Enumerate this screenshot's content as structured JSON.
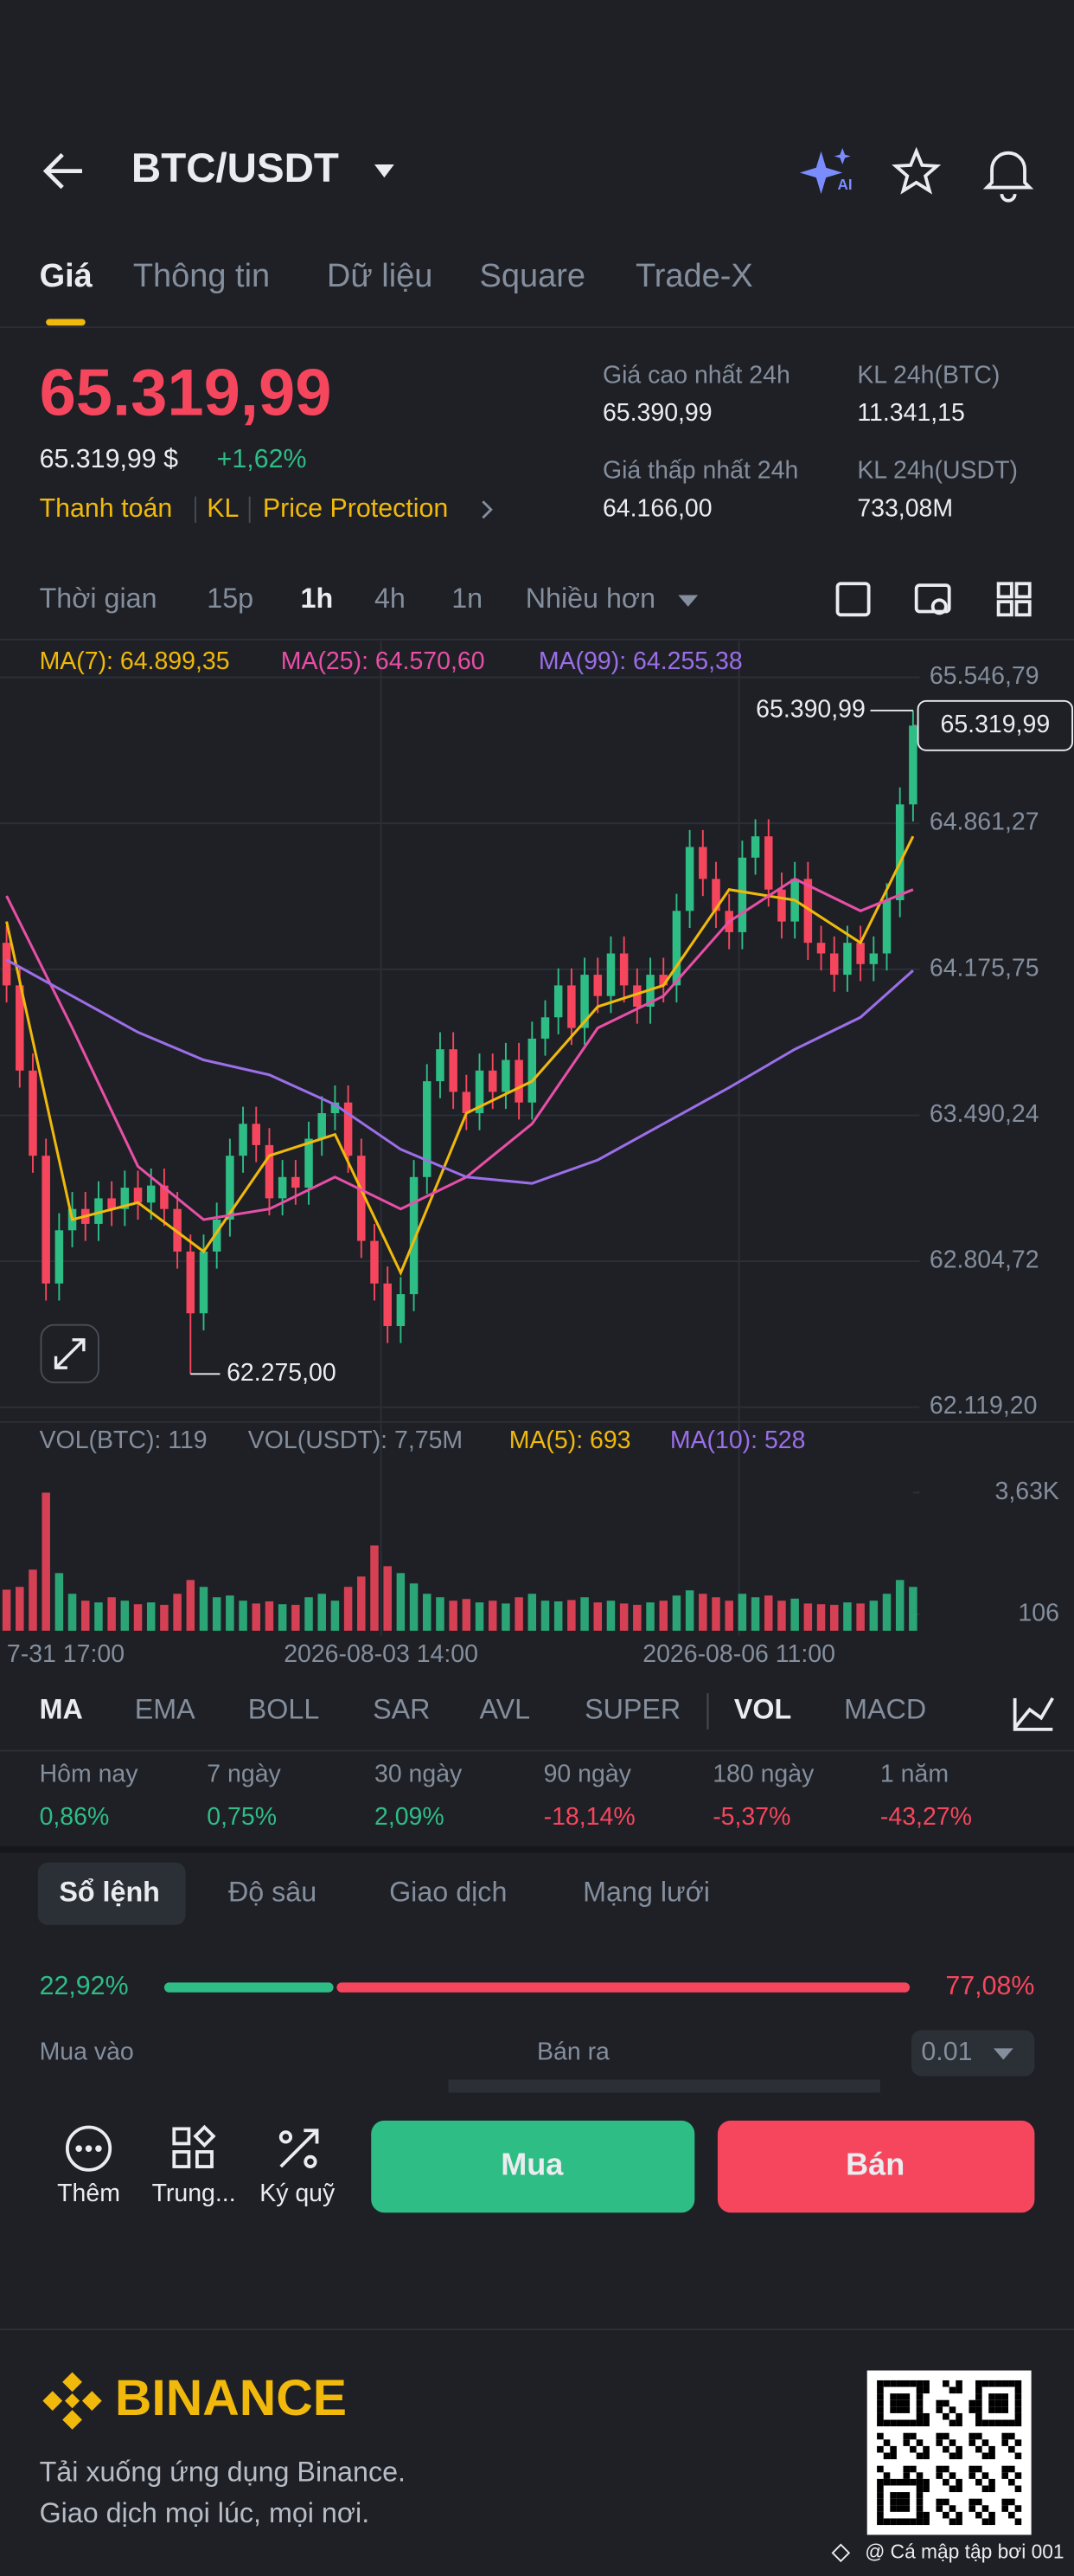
{
  "header": {
    "title": "BTC/USDT"
  },
  "tabs": [
    "Giá",
    "Thông tin",
    "Dữ liệu",
    "Square",
    "Trade-X"
  ],
  "price": {
    "last": "65.319,99",
    "usd": "65.319,99 $",
    "change": "+1,62%",
    "links": [
      "Thanh toán",
      "KL",
      "Price Protection"
    ]
  },
  "stats": [
    {
      "label": "Giá cao nhất 24h",
      "value": "65.390,99"
    },
    {
      "label": "KL 24h(BTC)",
      "value": "11.341,15"
    },
    {
      "label": "Giá thấp nhất 24h",
      "value": "64.166,00"
    },
    {
      "label": "KL 24h(USDT)",
      "value": "733,08M"
    }
  ],
  "intervals": [
    "Thời gian",
    "15p",
    "1h",
    "4h",
    "1n",
    "Nhiều hơn"
  ],
  "chart_data": {
    "type": "candlestick",
    "ylim": [
      62119.2,
      65546.79
    ],
    "yticks": [
      {
        "value": 65546.79,
        "label": "65.546,79"
      },
      {
        "value": 64861.27,
        "label": "64.861,27"
      },
      {
        "value": 64175.75,
        "label": "64.175,75"
      },
      {
        "value": 63490.24,
        "label": "63.490,24"
      },
      {
        "value": 62804.72,
        "label": "62.804,72"
      },
      {
        "value": 62119.2,
        "label": "62.119,20"
      }
    ],
    "xlabels": [
      "7-31 17:00",
      "2026-08-03 14:00",
      "2026-08-06 11:00"
    ],
    "high_label": "65.390,99",
    "low_label": "62.275,00",
    "last_label": "65.319,99",
    "candles": [
      [
        64300,
        64380,
        64020,
        64100
      ],
      [
        64100,
        64180,
        63620,
        63700
      ],
      [
        63700,
        63780,
        63220,
        63300
      ],
      [
        63300,
        63380,
        62620,
        62700
      ],
      [
        62700,
        63030,
        62620,
        62950
      ],
      [
        62950,
        63130,
        62870,
        63050
      ],
      [
        63050,
        63130,
        62900,
        62980
      ],
      [
        62980,
        63180,
        62900,
        63100
      ],
      [
        63100,
        63180,
        62970,
        63050
      ],
      [
        63050,
        63230,
        62970,
        63150
      ],
      [
        63150,
        63230,
        63000,
        63080
      ],
      [
        63080,
        63240,
        63000,
        63160
      ],
      [
        63160,
        63240,
        62970,
        63050
      ],
      [
        63050,
        63130,
        62770,
        62850
      ],
      [
        62850,
        62930,
        62275,
        62560
      ],
      [
        62560,
        62930,
        62480,
        62850
      ],
      [
        62850,
        63080,
        62770,
        63000
      ],
      [
        63000,
        63380,
        62920,
        63300
      ],
      [
        63300,
        63530,
        63220,
        63450
      ],
      [
        63450,
        63530,
        63270,
        63350
      ],
      [
        63350,
        63430,
        63020,
        63100
      ],
      [
        63100,
        63280,
        63020,
        63200
      ],
      [
        63200,
        63280,
        63070,
        63150
      ],
      [
        63150,
        63460,
        63070,
        63380
      ],
      [
        63380,
        63580,
        63300,
        63500
      ],
      [
        63500,
        63630,
        63420,
        63550
      ],
      [
        63550,
        63630,
        63220,
        63300
      ],
      [
        63300,
        63380,
        62820,
        62900
      ],
      [
        62900,
        62980,
        62620,
        62700
      ],
      [
        62700,
        62780,
        62420,
        62500
      ],
      [
        62500,
        62730,
        62420,
        62650
      ],
      [
        62650,
        63280,
        62570,
        63200
      ],
      [
        63200,
        63730,
        63120,
        63650
      ],
      [
        63650,
        63880,
        63570,
        63800
      ],
      [
        63800,
        63880,
        63520,
        63600
      ],
      [
        63600,
        63680,
        63420,
        63500
      ],
      [
        63500,
        63780,
        63420,
        63700
      ],
      [
        63700,
        63780,
        63520,
        63600
      ],
      [
        63600,
        63830,
        63520,
        63750
      ],
      [
        63750,
        63830,
        63470,
        63550
      ],
      [
        63550,
        63930,
        63470,
        63850
      ],
      [
        63850,
        64030,
        63770,
        63950
      ],
      [
        63950,
        64180,
        63870,
        64100
      ],
      [
        64100,
        64180,
        63820,
        63900
      ],
      [
        63900,
        64230,
        63820,
        64150
      ],
      [
        64150,
        64230,
        63970,
        64050
      ],
      [
        64050,
        64330,
        63970,
        64250
      ],
      [
        64250,
        64330,
        64020,
        64100
      ],
      [
        64100,
        64180,
        63920,
        64000
      ],
      [
        64000,
        64230,
        63920,
        64150
      ],
      [
        64150,
        64230,
        64020,
        64100
      ],
      [
        64100,
        64530,
        64020,
        64450
      ],
      [
        64450,
        64830,
        64370,
        64750
      ],
      [
        64750,
        64830,
        64520,
        64600
      ],
      [
        64600,
        64680,
        64370,
        64450
      ],
      [
        64450,
        64530,
        64270,
        64350
      ],
      [
        64350,
        64780,
        64270,
        64700
      ],
      [
        64700,
        64880,
        64620,
        64800
      ],
      [
        64800,
        64880,
        64470,
        64550
      ],
      [
        64550,
        64630,
        64320,
        64400
      ],
      [
        64400,
        64680,
        64320,
        64600
      ],
      [
        64600,
        64680,
        64220,
        64300
      ],
      [
        64300,
        64380,
        64170,
        64250
      ],
      [
        64250,
        64330,
        64070,
        64150
      ],
      [
        64150,
        64380,
        64070,
        64300
      ],
      [
        64300,
        64380,
        64120,
        64200
      ],
      [
        64200,
        64330,
        64120,
        64250
      ],
      [
        64250,
        64580,
        64170,
        64500
      ],
      [
        64500,
        65030,
        64420,
        64950
      ],
      [
        64950,
        65390.99,
        64870,
        65319.99
      ]
    ],
    "ma_index": [
      0,
      5,
      10,
      15,
      20,
      25,
      30,
      35,
      40,
      45,
      50,
      55,
      60,
      65,
      69
    ],
    "series": [
      {
        "name": "MA(7): 64.899,35",
        "color": "#f0b90b",
        "values": [
          64400,
          63000,
          63080,
          62850,
          63300,
          63400,
          62750,
          63500,
          63650,
          64000,
          64100,
          64550,
          64500,
          64300,
          64800
        ]
      },
      {
        "name": "MA(25): 64.570,60",
        "color": "#e84fa6",
        "values": [
          64520,
          63900,
          63250,
          63000,
          63050,
          63200,
          63050,
          63200,
          63450,
          63900,
          64050,
          64400,
          64600,
          64450,
          64550
        ]
      },
      {
        "name": "MA(99): 64.255,38",
        "color": "#9c6ee8",
        "values": [
          64220,
          64050,
          63880,
          63750,
          63680,
          63540,
          63330,
          63200,
          63170,
          63280,
          63450,
          63620,
          63800,
          63950,
          64170
        ]
      }
    ],
    "volume": {
      "legend": [
        {
          "name": "VOL(BTC): 119",
          "color": "#848e9c"
        },
        {
          "name": "VOL(USDT): 7,75M",
          "color": "#848e9c"
        },
        {
          "name": "MA(5): 693",
          "color": "#f0b90b"
        },
        {
          "name": "MA(10): 528",
          "color": "#9c6ee8"
        }
      ],
      "ylim": [
        106,
        3630
      ],
      "yticks": [
        {
          "value": 3630,
          "label": "3,63K"
        },
        106
      ],
      "values": [
        820,
        900,
        1400,
        3630,
        1300,
        700,
        500,
        450,
        600,
        500,
        400,
        450,
        380,
        700,
        1100,
        900,
        600,
        650,
        500,
        420,
        480,
        400,
        380,
        600,
        700,
        500,
        900,
        1200,
        2100,
        1500,
        1300,
        1000,
        700,
        600,
        500,
        550,
        450,
        500,
        420,
        600,
        700,
        500,
        480,
        520,
        600,
        450,
        500,
        420,
        380,
        450,
        500,
        650,
        800,
        700,
        600,
        500,
        700,
        600,
        650,
        500,
        560,
        420,
        400,
        380,
        450,
        420,
        500,
        700,
        1100,
        900
      ]
    }
  },
  "indicators": [
    "MA",
    "EMA",
    "BOLL",
    "SAR",
    "AVL",
    "SUPER",
    "VOL",
    "MACD"
  ],
  "performance": [
    {
      "label": "Hôm nay",
      "value": "0,86%"
    },
    {
      "label": "7 ngày",
      "value": "0,75%"
    },
    {
      "label": "30 ngày",
      "value": "2,09%"
    },
    {
      "label": "90 ngày",
      "value": "-18,14%"
    },
    {
      "label": "180 ngày",
      "value": "-5,37%"
    },
    {
      "label": "1 năm",
      "value": "-43,27%"
    }
  ],
  "orderbook": {
    "tabs": [
      "Sổ lệnh",
      "Độ sâu",
      "Giao dịch",
      "Mạng lưới"
    ],
    "buy_ratio": {
      "value": 22.92,
      "label": "22,92%"
    },
    "sell_ratio": {
      "value": 77.08,
      "label": "77,08%"
    },
    "buy_label": "Mua vào",
    "sell_label": "Bán ra",
    "precision": "0.01"
  },
  "actions": {
    "tools": [
      "Thêm",
      "Trung...",
      "Ký quỹ"
    ],
    "buy": "Mua",
    "sell": "Bán"
  },
  "footer": {
    "brand": "BINANCE",
    "tagline": [
      "Tải xuống ứng dụng Binance.",
      "Giao dịch mọi lúc, mọi nơi."
    ],
    "watermark": "@ Cá mập tập bơi 001"
  }
}
